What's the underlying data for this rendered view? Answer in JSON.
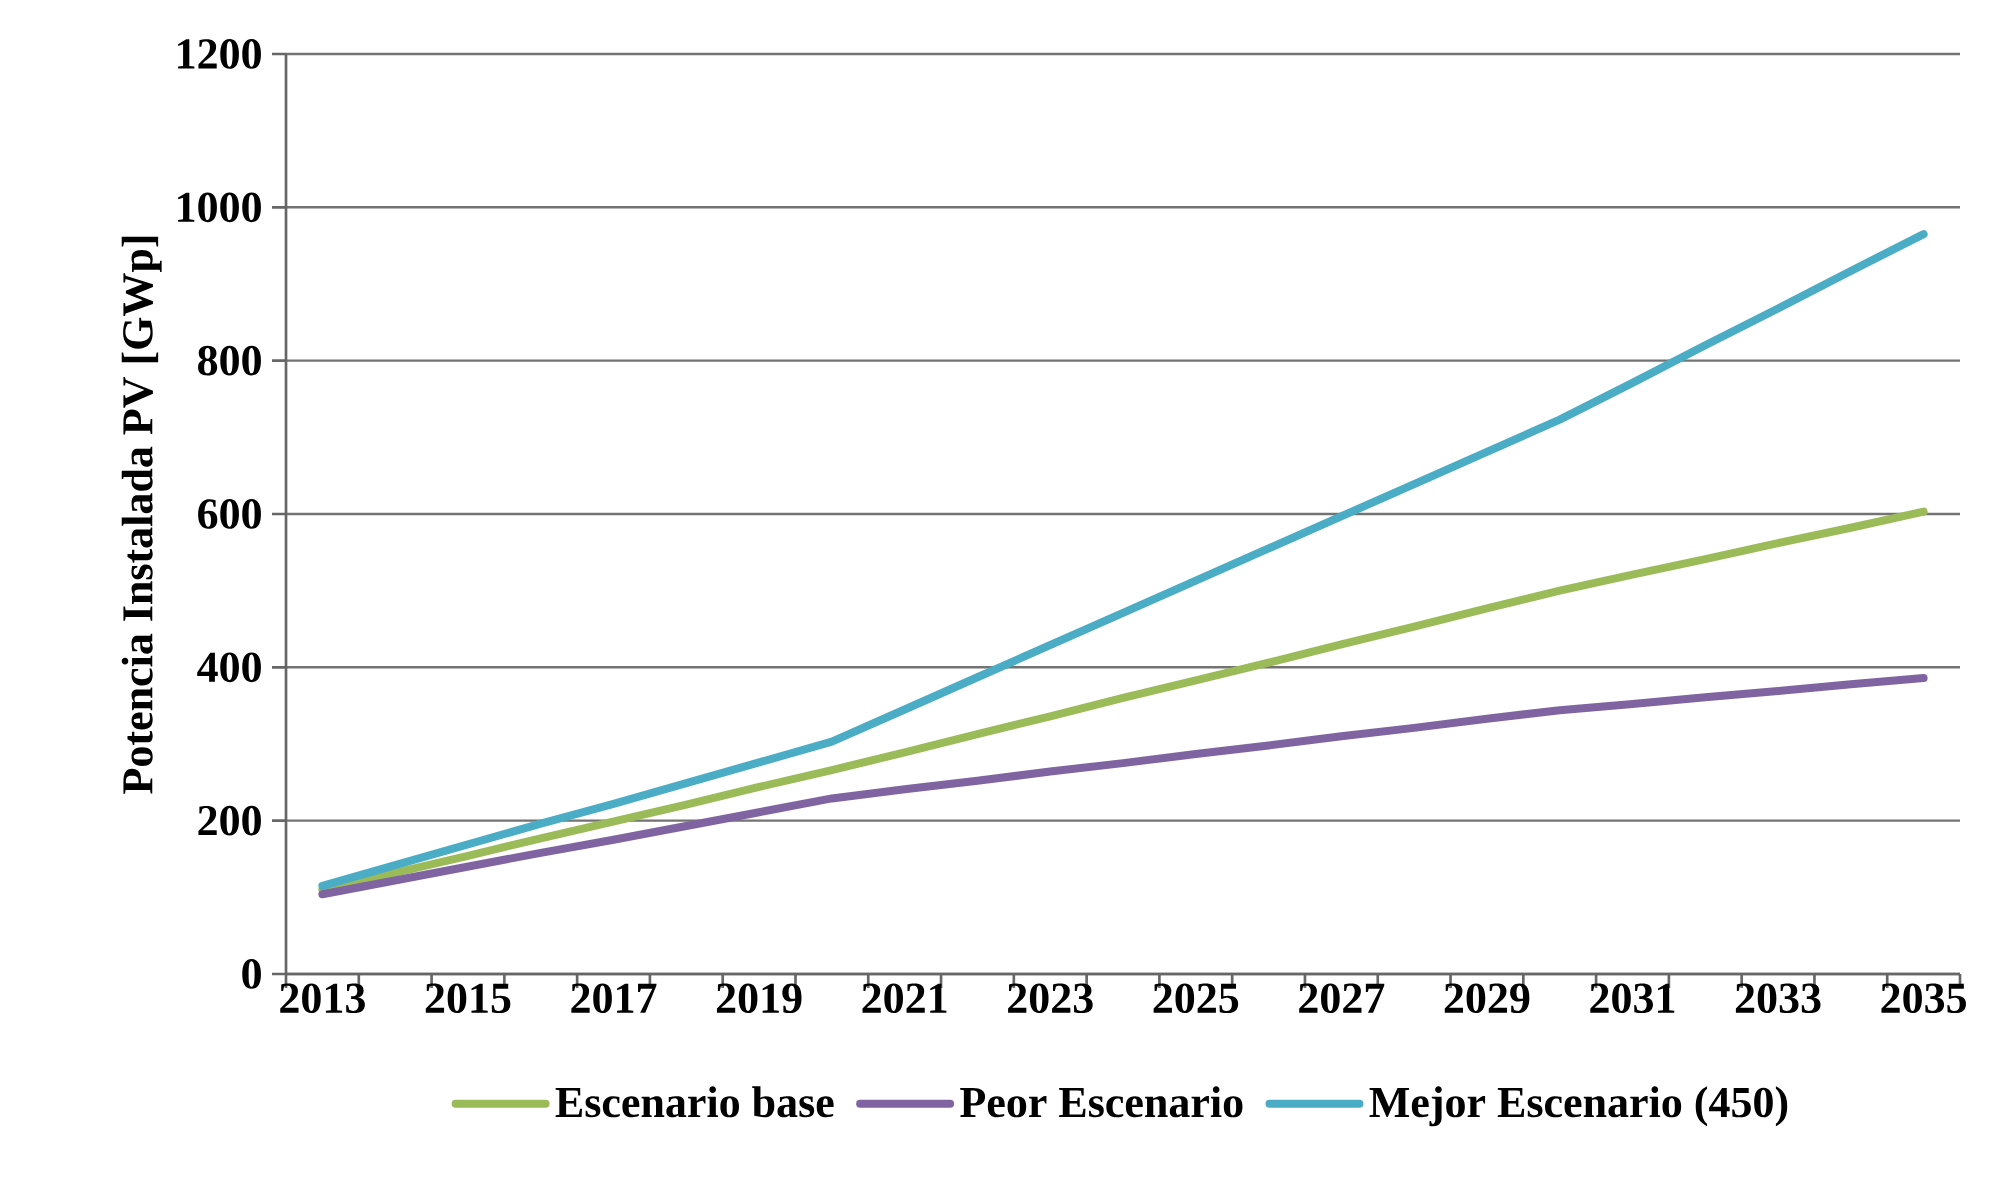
{
  "chart_data": {
    "type": "line",
    "ylabel": "Potencia Instalada PV [GWp]",
    "categories": [
      "2013",
      null,
      "2015",
      null,
      "2017",
      null,
      "2019",
      null,
      "2021",
      null,
      "2023",
      null,
      "2025",
      null,
      "2027",
      null,
      "2029",
      null,
      "2031",
      null,
      "2033",
      null,
      "2035"
    ],
    "series": [
      {
        "name": "Escenario base",
        "color": "#9bbb59",
        "values": [
          110,
          132,
          154,
          177,
          199,
          221,
          244,
          266,
          289,
          313,
          336,
          360,
          383,
          406,
          430,
          453,
          477,
          500,
          521,
          541,
          562,
          582,
          603
        ]
      },
      {
        "name": "Peor Escenario",
        "color": "#8064a2",
        "values": [
          104,
          122,
          140,
          158,
          175,
          193,
          211,
          229,
          241,
          252,
          264,
          275,
          287,
          298,
          310,
          321,
          333,
          344,
          352,
          361,
          369,
          378,
          386
        ]
      },
      {
        "name": "Mejor Escenario (450)",
        "color": "#4bacc6",
        "values": [
          115,
          142,
          169,
          196,
          222,
          249,
          276,
          303,
          345,
          387,
          429,
          471,
          513,
          555,
          597,
          639,
          681,
          723,
          771,
          820,
          868,
          917,
          965
        ]
      }
    ],
    "ylim": [
      0,
      1200
    ],
    "yticks": [
      0,
      200,
      400,
      600,
      800,
      1000,
      1200
    ],
    "grid": "y",
    "legend": "bottom",
    "line_style": "solid",
    "marker": "none"
  }
}
